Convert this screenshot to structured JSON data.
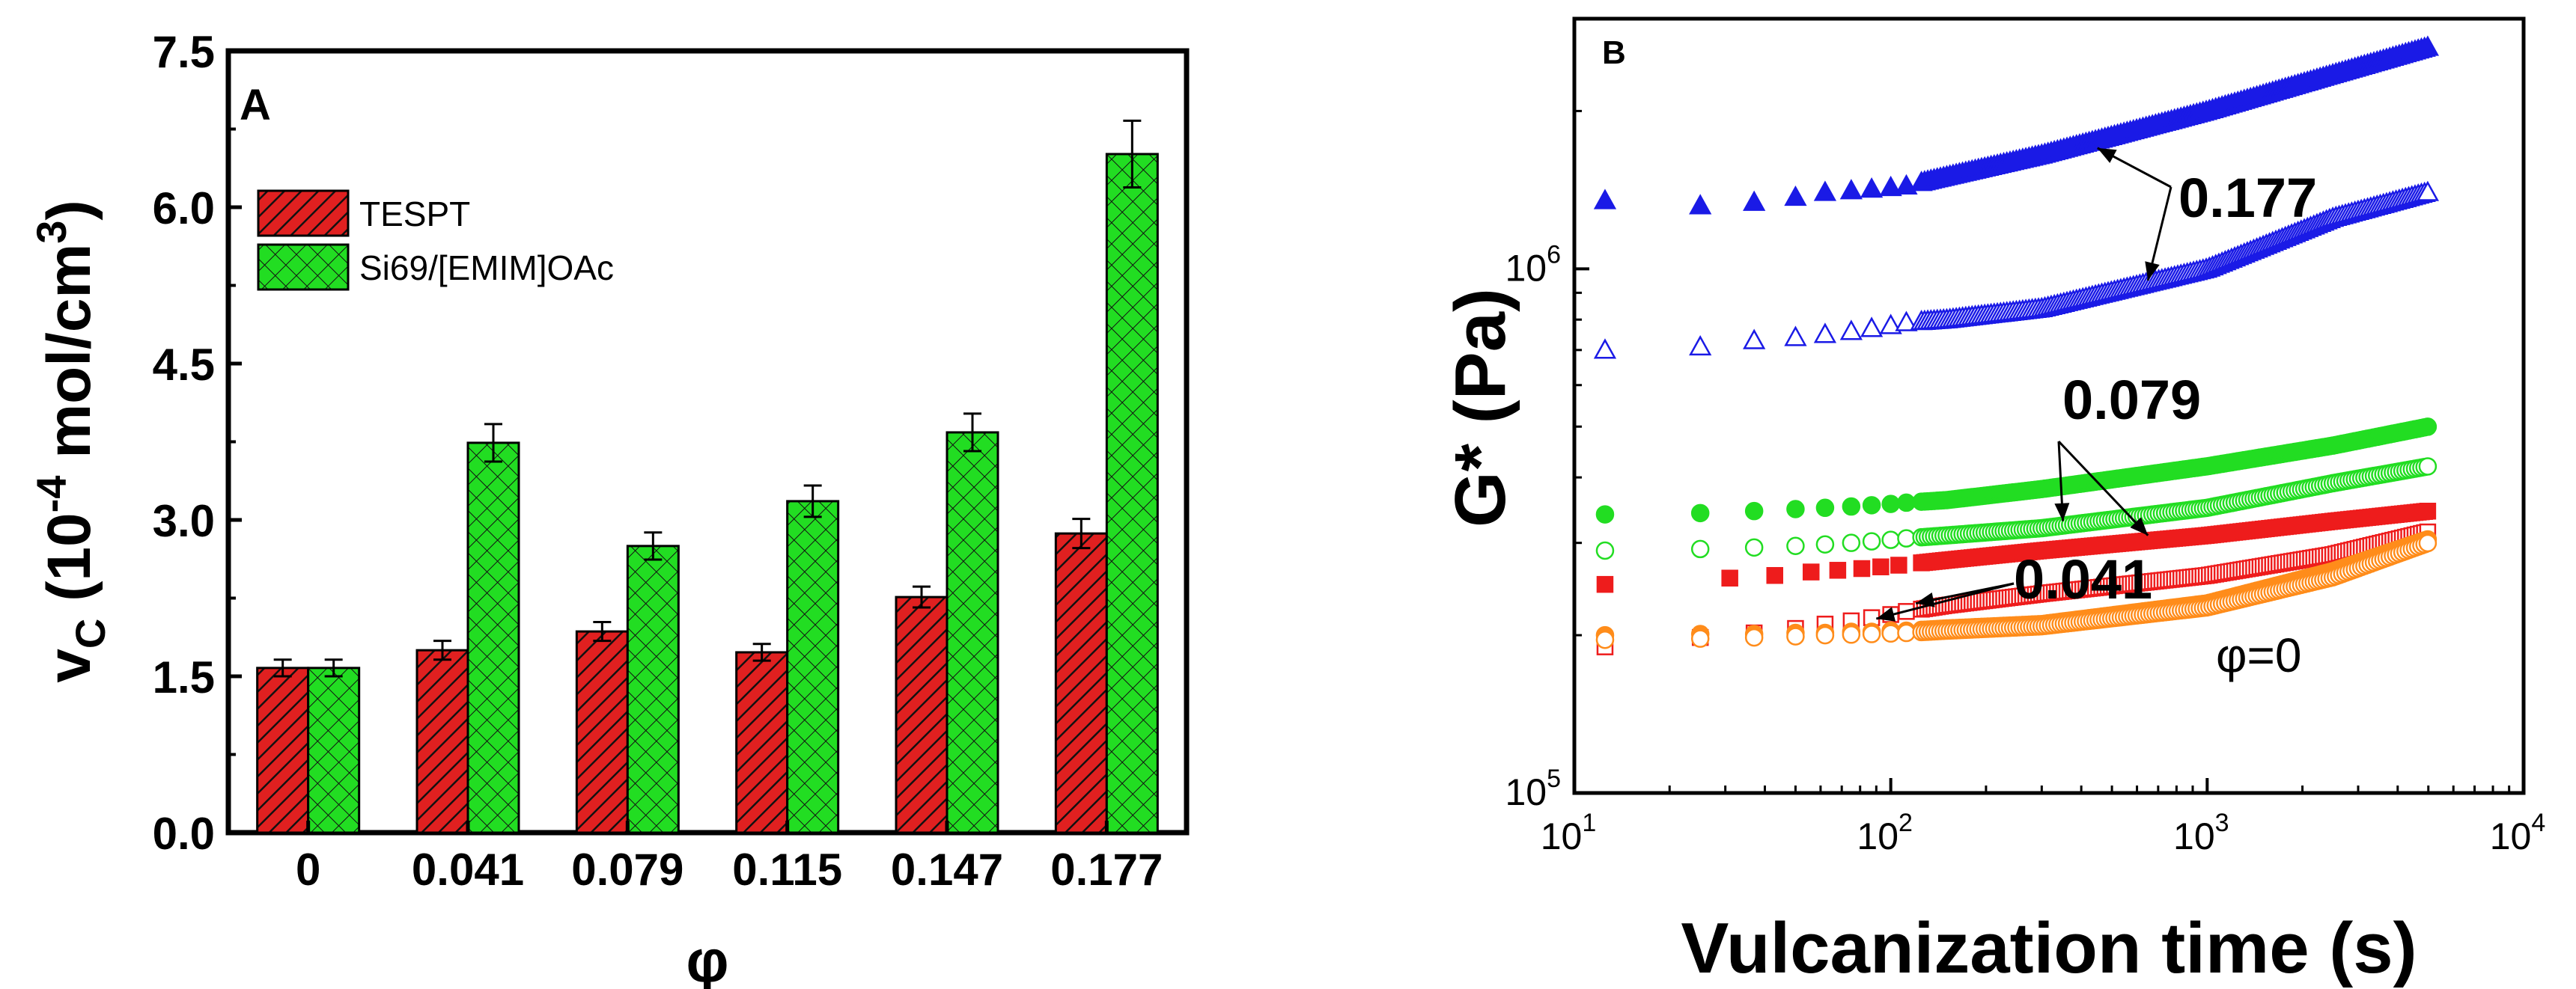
{
  "chart_data": [
    {
      "type": "bar",
      "panel_label": "A",
      "xlabel": "φ",
      "ylabel_main": "v",
      "ylabel_sub": "C",
      "ylabel_units_pre": "(10",
      "ylabel_units_exp": "-4",
      "ylabel_units_mid": " mol/cm",
      "ylabel_units_exp2": "3",
      "ylabel_units_post": ")",
      "categories": [
        "0",
        "0.041",
        "0.079",
        "0.115",
        "0.147",
        "0.177"
      ],
      "ylim": [
        0,
        7.5
      ],
      "yticks": [
        "0.0",
        "1.5",
        "3.0",
        "4.5",
        "6.0",
        "7.5"
      ],
      "legend_position": "upper-left",
      "series": [
        {
          "name": "TESPT",
          "color": "#e02020",
          "pattern": "diagonal",
          "values": [
            1.58,
            1.75,
            1.93,
            1.73,
            2.26,
            2.87
          ],
          "errors": [
            0.08,
            0.09,
            0.09,
            0.08,
            0.1,
            0.14
          ]
        },
        {
          "name": "Si69/[EMIM]OAc",
          "color": "#22dd22",
          "pattern": "crosshatch",
          "values": [
            1.58,
            3.74,
            2.75,
            3.18,
            3.84,
            6.51
          ],
          "errors": [
            0.08,
            0.18,
            0.13,
            0.15,
            0.18,
            0.32
          ]
        }
      ]
    },
    {
      "type": "scatter",
      "panel_label": "B",
      "xscale": "log",
      "yscale": "log",
      "xlabel": "Vulcanization time (s)",
      "ylabel": "G* (Pa)",
      "xlim": [
        10,
        10000
      ],
      "ylim": [
        100000,
        3000000
      ],
      "xticks": [
        {
          "base": "10",
          "exp": "1",
          "value": 10
        },
        {
          "base": "10",
          "exp": "2",
          "value": 100
        },
        {
          "base": "10",
          "exp": "3",
          "value": 1000
        },
        {
          "base": "10",
          "exp": "4",
          "value": 10000
        }
      ],
      "yticks": [
        {
          "base": "10",
          "exp": "5",
          "value": 100000
        },
        {
          "base": "10",
          "exp": "6",
          "value": 1000000
        }
      ],
      "annotations": [
        {
          "text": "0.177",
          "targets": [
            [
              450,
              1700000
            ],
            [
              650,
              950000
            ]
          ]
        },
        {
          "text": "0.079",
          "targets": [
            [
              350,
              330000
            ],
            [
              650,
              310000
            ]
          ]
        },
        {
          "text": "0.041",
          "targets": [
            [
              90,
              215000
            ],
            [
              120,
              230000
            ]
          ]
        },
        {
          "text": "φ=0",
          "targets": []
        }
      ],
      "series": [
        {
          "name": "0.177 filled",
          "marker": "triangle",
          "filled": true,
          "color": "#1a1ae6",
          "x": [
            12.5,
            25,
            37,
            50,
            62,
            75,
            87,
            100,
            112,
            150,
            300,
            1000,
            2500,
            5000
          ],
          "y": [
            1350000,
            1320000,
            1340000,
            1370000,
            1400000,
            1410000,
            1420000,
            1430000,
            1440000,
            1500000,
            1650000,
            2000000,
            2350000,
            2650000
          ]
        },
        {
          "name": "0.177 open",
          "marker": "triangle",
          "filled": false,
          "color": "#1a1ae6",
          "x": [
            12.5,
            25,
            37,
            50,
            62,
            75,
            87,
            100,
            112,
            150,
            300,
            1000,
            2500,
            5000
          ],
          "y": [
            700000,
            710000,
            730000,
            740000,
            750000,
            760000,
            770000,
            780000,
            790000,
            800000,
            840000,
            1000000,
            1250000,
            1400000
          ]
        },
        {
          "name": "0.079 filled",
          "marker": "circle",
          "filled": true,
          "color": "#22dd22",
          "x": [
            12.5,
            25,
            37,
            50,
            62,
            75,
            87,
            100,
            112,
            150,
            300,
            1000,
            2500,
            5000
          ],
          "y": [
            340000,
            342000,
            345000,
            348000,
            350000,
            352000,
            354000,
            356000,
            358000,
            362000,
            380000,
            420000,
            460000,
            500000
          ]
        },
        {
          "name": "0.079 open",
          "marker": "circle",
          "filled": false,
          "color": "#22dd22",
          "x": [
            12.5,
            25,
            37,
            50,
            62,
            75,
            87,
            100,
            112,
            150,
            300,
            1000,
            2500,
            5000
          ],
          "y": [
            290000,
            292000,
            294000,
            296000,
            298000,
            300000,
            302000,
            304000,
            306000,
            310000,
            320000,
            350000,
            390000,
            420000
          ]
        },
        {
          "name": "0.041 filled",
          "marker": "square",
          "filled": true,
          "color": "#ee1c1c",
          "x": [
            12.5,
            31,
            43,
            56,
            68,
            81,
            93,
            106,
            150,
            300,
            1000,
            2500,
            5000
          ],
          "y": [
            250000,
            257000,
            260000,
            264000,
            266000,
            268000,
            270000,
            272000,
            278000,
            290000,
            310000,
            330000,
            345000
          ]
        },
        {
          "name": "0.041 open",
          "marker": "square",
          "filled": false,
          "color": "#ee1c1c",
          "x": [
            12.5,
            25,
            37,
            50,
            62,
            75,
            87,
            100,
            112,
            150,
            300,
            1000,
            2500,
            5000
          ],
          "y": [
            190000,
            198000,
            202000,
            206000,
            210000,
            213000,
            216000,
            219000,
            222000,
            228000,
            240000,
            260000,
            285000,
            315000
          ]
        },
        {
          "name": "φ=0 filled",
          "marker": "circle",
          "filled": true,
          "color": "#ff8c1a",
          "x": [
            12.5,
            25,
            37,
            50,
            62,
            75,
            87,
            100,
            112,
            150,
            300,
            1000,
            2500,
            5000
          ],
          "y": [
            200000,
            201000,
            201000,
            202000,
            202000,
            203000,
            203000,
            204000,
            204000,
            206000,
            210000,
            230000,
            265000,
            305000
          ]
        },
        {
          "name": "φ=0 open",
          "marker": "circle",
          "filled": false,
          "color": "#ff8c1a",
          "x": [
            12.5,
            25,
            37,
            50,
            62,
            75,
            87,
            100,
            112,
            150,
            300,
            1000,
            2500,
            5000
          ],
          "y": [
            196000,
            197000,
            198000,
            199000,
            200000,
            200500,
            201000,
            201500,
            202000,
            204000,
            208000,
            226000,
            258000,
            300000
          ]
        }
      ]
    }
  ]
}
